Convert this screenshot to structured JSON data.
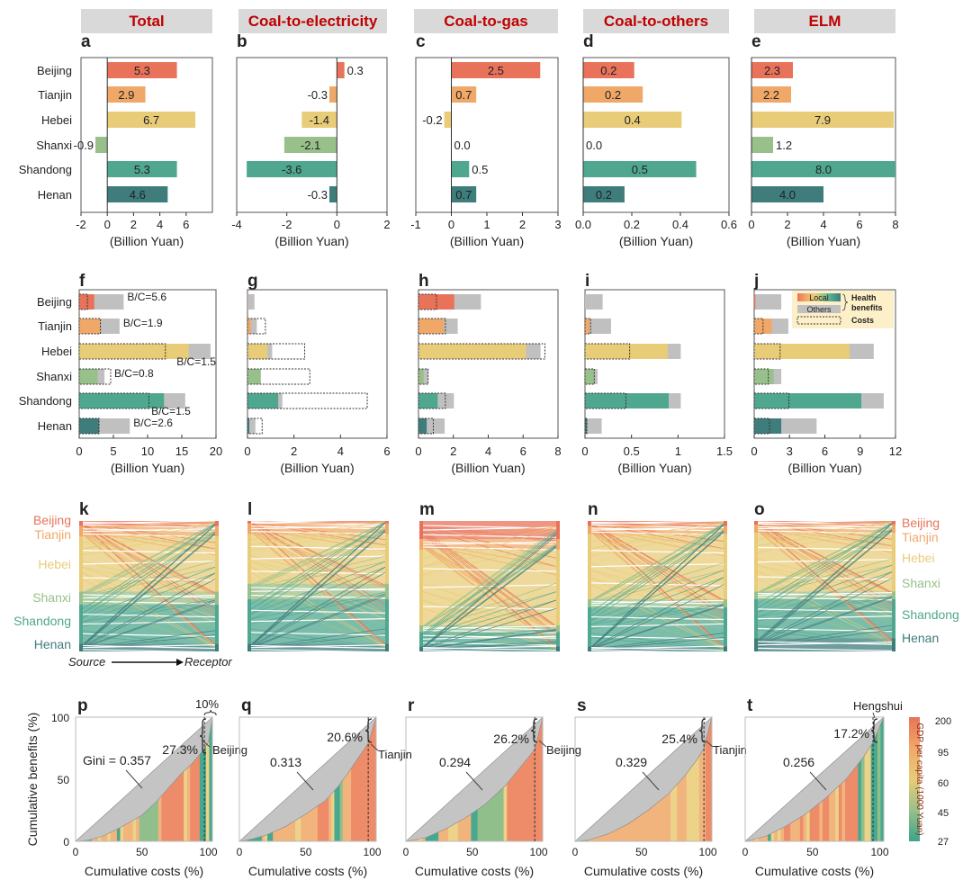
{
  "headers": [
    "Total",
    "Coal-to-electricity",
    "Coal-to-gas",
    "Coal-to-others",
    "ELM"
  ],
  "regions": [
    "Beijing",
    "Tianjin",
    "Hebei",
    "Shanxi",
    "Shandong",
    "Henan"
  ],
  "region_colors": [
    "#e8735a",
    "#f0a868",
    "#e8cc78",
    "#98c08a",
    "#4fa78f",
    "#3f7c7c"
  ],
  "chart_data": [
    {
      "panel": "a",
      "type": "bar",
      "orientation": "horizontal",
      "xlabel": "(Billion Yuan)",
      "xlim": [
        -2,
        8
      ],
      "ticks": [
        -2,
        0,
        2,
        4,
        6
      ],
      "values": [
        5.3,
        2.9,
        6.7,
        -0.9,
        5.3,
        4.6
      ],
      "labels": [
        "5.3",
        "2.9",
        "6.7",
        "-0.9",
        "5.3",
        "4.6"
      ]
    },
    {
      "panel": "b",
      "type": "bar",
      "orientation": "horizontal",
      "xlabel": "(Billion Yuan)",
      "xlim": [
        -4,
        2
      ],
      "ticks": [
        -4,
        -2,
        0,
        2
      ],
      "values": [
        0.3,
        -0.3,
        -1.4,
        -2.1,
        -3.6,
        -0.3
      ],
      "labels": [
        "0.3",
        "-0.3",
        "-1.4",
        "-2.1",
        "-3.6",
        "-0.3"
      ]
    },
    {
      "panel": "c",
      "type": "bar",
      "orientation": "horizontal",
      "xlabel": "(Billion Yuan)",
      "xlim": [
        -1,
        3
      ],
      "ticks": [
        -1,
        0,
        1,
        2,
        3
      ],
      "values": [
        2.5,
        0.7,
        -0.2,
        0.0,
        0.5,
        0.7
      ],
      "labels": [
        "2.5",
        "0.7",
        "-0.2",
        "0.0",
        "0.5",
        "0.7"
      ]
    },
    {
      "panel": "d",
      "type": "bar",
      "orientation": "horizontal",
      "xlabel": "(Billion Yuan)",
      "xlim": [
        0,
        0.6
      ],
      "ticks": [
        0,
        0.2,
        0.4,
        0.6
      ],
      "tick_labels": [
        "0.0",
        "0.2",
        "0.4",
        "0.6"
      ],
      "values": [
        0.21,
        0.245,
        0.405,
        0.0,
        0.465,
        0.17
      ],
      "labels": [
        "0.2",
        "0.2",
        "0.4",
        "0.0",
        "0.5",
        "0.2"
      ]
    },
    {
      "panel": "e",
      "type": "bar",
      "orientation": "horizontal",
      "xlabel": "(Billion Yuan)",
      "xlim": [
        0,
        8
      ],
      "ticks": [
        0,
        2,
        4,
        6,
        8
      ],
      "values": [
        2.3,
        2.2,
        7.9,
        1.2,
        8.0,
        4.0
      ],
      "labels": [
        "2.3",
        "2.2",
        "7.9",
        "1.2",
        "8.0",
        "4.0"
      ]
    },
    {
      "panel": "f",
      "type": "bar",
      "orientation": "horizontal",
      "xlabel": "(Billion Yuan)",
      "xlim": [
        0,
        20
      ],
      "ticks": [
        0,
        5,
        10,
        15,
        20
      ],
      "local": [
        2.2,
        3.1,
        16.0,
        2.7,
        12.4,
        2.9
      ],
      "total": [
        6.5,
        5.9,
        19.2,
        3.7,
        15.5,
        7.4
      ],
      "cost": [
        1.2,
        3.1,
        12.6,
        4.6,
        10.2,
        2.9
      ],
      "bc_labels": [
        "B/C=5.6",
        "B/C=1.9",
        "B/C=1.5",
        "B/C=0.8",
        "B/C=1.5",
        "B/C=2.6"
      ]
    },
    {
      "panel": "g",
      "type": "bar",
      "orientation": "horizontal",
      "xlabel": "(Billion Yuan)",
      "xlim": [
        0,
        6
      ],
      "ticks": [
        0,
        2,
        4,
        6
      ],
      "local": [
        0.01,
        0.15,
        0.86,
        0.57,
        1.32,
        0.08
      ],
      "total": [
        0.3,
        0.4,
        1.06,
        0.57,
        1.5,
        0.34
      ],
      "cost": [
        0.0,
        0.77,
        2.46,
        2.68,
        5.15,
        0.63
      ]
    },
    {
      "panel": "h",
      "type": "bar",
      "orientation": "horizontal",
      "xlabel": "(Billion Yuan)",
      "xlim": [
        0,
        8
      ],
      "ticks": [
        0,
        2,
        4,
        6,
        8
      ],
      "local": [
        2.05,
        1.46,
        6.17,
        0.3,
        1.1,
        0.47
      ],
      "total": [
        3.58,
        2.25,
        7.0,
        0.56,
        2.03,
        1.5
      ],
      "cost": [
        1.03,
        1.54,
        7.25,
        0.55,
        1.54,
        0.85
      ]
    },
    {
      "panel": "i",
      "type": "bar",
      "orientation": "horizontal",
      "xlabel": "(Billion Yuan)",
      "xlim": [
        0,
        1.5
      ],
      "ticks": [
        0,
        0.5,
        1,
        1.5
      ],
      "local": [
        0.0,
        0.05,
        0.89,
        0.1,
        0.9,
        0.02
      ],
      "total": [
        0.19,
        0.28,
        1.03,
        0.135,
        1.03,
        0.18
      ],
      "cost": [
        0.0,
        0.06,
        0.48,
        0.1,
        0.44,
        0.02
      ]
    },
    {
      "panel": "j",
      "type": "bar",
      "orientation": "horizontal",
      "xlabel": "(Billion Yuan)",
      "xlim": [
        0,
        12
      ],
      "ticks": [
        0,
        3,
        6,
        9,
        12
      ],
      "local": [
        0.1,
        1.5,
        8.1,
        1.65,
        9.1,
        2.3
      ],
      "total": [
        2.3,
        2.9,
        10.15,
        2.3,
        11.0,
        5.3
      ],
      "cost": [
        0.0,
        0.75,
        2.2,
        1.2,
        2.95,
        1.3
      ]
    },
    {
      "panel": "k",
      "type": "sankey",
      "shares": [
        0.04,
        0.08,
        0.42,
        0.1,
        0.3,
        0.06
      ]
    },
    {
      "panel": "l",
      "type": "sankey",
      "shares": [
        0.02,
        0.08,
        0.38,
        0.12,
        0.34,
        0.06
      ]
    },
    {
      "panel": "m",
      "type": "sankey",
      "shares": [
        0.14,
        0.08,
        0.58,
        0.05,
        0.11,
        0.04
      ]
    },
    {
      "panel": "n",
      "type": "sankey",
      "shares": [
        0.04,
        0.06,
        0.5,
        0.06,
        0.3,
        0.04
      ]
    },
    {
      "panel": "o",
      "type": "sankey",
      "shares": [
        0.03,
        0.06,
        0.45,
        0.06,
        0.3,
        0.1
      ]
    },
    {
      "panel": "p",
      "type": "area",
      "gini_label": "Gini = 0.357",
      "top_share": "27.3%",
      "top_width": "10%",
      "city": "Beijing",
      "marker_x": 97,
      "curve": [
        [
          0,
          0
        ],
        [
          10,
          1
        ],
        [
          20,
          4
        ],
        [
          30,
          9
        ],
        [
          40,
          15
        ],
        [
          50,
          21
        ],
        [
          60,
          31
        ],
        [
          70,
          43
        ],
        [
          80,
          55
        ],
        [
          88,
          63
        ],
        [
          95,
          72
        ],
        [
          100,
          80
        ],
        [
          103,
          100
        ]
      ],
      "strips": "ooottooyooyootyoooyoggggggorrrrrrryorrrttyt"
    },
    {
      "panel": "q",
      "type": "area",
      "gini_label": "0.313",
      "top_share": "20.6%",
      "city": "Tianjin",
      "marker_x": 97,
      "curve": [
        [
          0,
          0
        ],
        [
          10,
          2
        ],
        [
          20,
          5
        ],
        [
          35,
          12
        ],
        [
          50,
          22
        ],
        [
          65,
          33
        ],
        [
          75,
          45
        ],
        [
          85,
          60
        ],
        [
          97,
          79
        ],
        [
          103,
          100
        ]
      ],
      "strips": "rrrtttttoyttooooooooyyoooooorrrroyttgooorrrrrrrrr"
    },
    {
      "panel": "r",
      "type": "area",
      "gini_label": "0.294",
      "top_share": "26.2%",
      "city": "Beijing",
      "marker_x": 97,
      "curve": [
        [
          0,
          0
        ],
        [
          15,
          3
        ],
        [
          30,
          10
        ],
        [
          45,
          19
        ],
        [
          60,
          30
        ],
        [
          75,
          45
        ],
        [
          88,
          62
        ],
        [
          97,
          74
        ],
        [
          103,
          100
        ]
      ],
      "strips": "ooooyottttoooyyyoooottggggggggyrrrrrrrrrrr"
    },
    {
      "panel": "s",
      "type": "area",
      "gini_label": "0.329",
      "top_share": "25.4%",
      "city": "Tianjin",
      "marker_x": 97,
      "curve": [
        [
          0,
          0
        ],
        [
          10,
          1
        ],
        [
          25,
          6
        ],
        [
          40,
          14
        ],
        [
          55,
          25
        ],
        [
          70,
          38
        ],
        [
          82,
          52
        ],
        [
          92,
          66
        ],
        [
          97,
          75
        ],
        [
          103,
          100
        ]
      ],
      "strips": "oootooooooooooooooooooooooooooyyoooyyyyoorr"
    },
    {
      "panel": "t",
      "type": "area",
      "gini_label": "0.256",
      "top_share": "17.2%",
      "city": "Hengshui",
      "marker_x": 95,
      "curve": [
        [
          0,
          0
        ],
        [
          15,
          4
        ],
        [
          30,
          12
        ],
        [
          45,
          22
        ],
        [
          60,
          35
        ],
        [
          75,
          50
        ],
        [
          88,
          68
        ],
        [
          95,
          80
        ],
        [
          103,
          100
        ]
      ],
      "strips": "oooyoootyoyorroooroyrrrorrooyrorrrrtgyyttgt"
    }
  ],
  "gini_xlabel": "Cumulative costs (%)",
  "gini_ylabel": "Cumulative benefits (%)",
  "gini_xticks": [
    0,
    50,
    100
  ],
  "gini_yticks": [
    0,
    50,
    100
  ],
  "sankey_source": "Source",
  "sankey_receptor": "Receptor",
  "legend": {
    "local": "Local",
    "others": "Others",
    "health": "Health",
    "benefits": "benefits",
    "costs": "Costs"
  },
  "colorbar": {
    "title": "GDP per capita (1000 Yuan)",
    "ticks": [
      "200",
      "95",
      "60",
      "45",
      "27"
    ],
    "colors": [
      "#e8735a",
      "#f0a868",
      "#e8cc78",
      "#98c08a",
      "#3aa58c"
    ]
  },
  "strip_palette": {
    "r": "#ee8c6a",
    "o": "#f1b47c",
    "y": "#ecd389",
    "g": "#90bf8c",
    "t": "#47a88f"
  },
  "others_color": "#c0c0c0",
  "title_color": "#c00000"
}
